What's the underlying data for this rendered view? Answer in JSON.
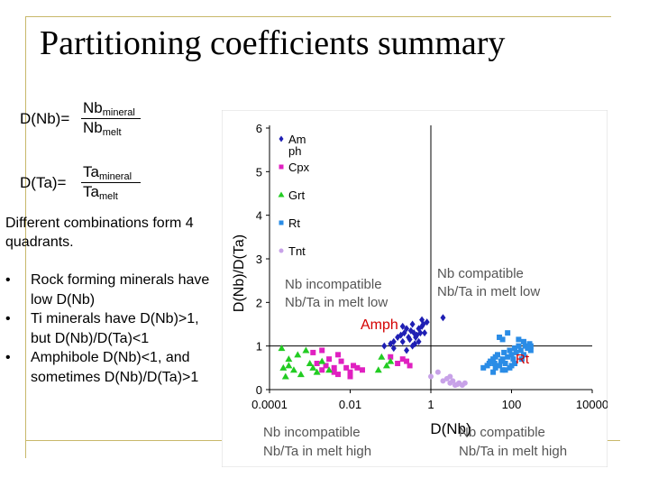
{
  "slide": {
    "title": "Partitioning coefficients summary",
    "d_nb": {
      "lhs": "D(Nb)=",
      "num_main": "Nb",
      "num_sub": "mineral",
      "den_main": "Nb",
      "den_sub": "melt"
    },
    "d_ta": {
      "lhs": "D(Ta)=",
      "num_main": "Ta",
      "num_sub": "mineral",
      "den_main": "Ta",
      "den_sub": "melt"
    },
    "intro": "Different combinations form 4 quadrants.",
    "bullets": [
      "Rock forming minerals have low D(Nb)",
      "Ti minerals have D(Nb)>1, but D(Nb)/D(Ta)<1",
      "Amphibole D(Nb)<1, and sometimes D(Nb)/D(Ta)>1"
    ]
  },
  "chart_data": {
    "type": "scatter",
    "xscale": "log",
    "xlabel": "D(Nb)",
    "ylabel": "D(Nb)/D(Ta)",
    "xlim": [
      0.0001,
      10000
    ],
    "ylim": [
      0,
      6
    ],
    "x_ticks": [
      "0.0001",
      "0.01",
      "1",
      "100",
      "10000"
    ],
    "y_ticks": [
      "0",
      "1",
      "2",
      "3",
      "4",
      "5",
      "6"
    ],
    "reference_lines": {
      "x": 1,
      "y": 1
    },
    "legend": {
      "placement": "top-left",
      "entries": [
        {
          "name": "Am ph",
          "color": "#1f1fb4",
          "marker": "diamond"
        },
        {
          "name": "Cpx",
          "color": "#e020c0",
          "marker": "square"
        },
        {
          "name": "Grt",
          "color": "#22cc22",
          "marker": "triangle"
        },
        {
          "name": "Rt",
          "color": "#2a8ce6",
          "marker": "square"
        },
        {
          "name": "Tnt",
          "color": "#c8a2e8",
          "marker": "circle"
        }
      ]
    },
    "annotations": [
      {
        "id": "q-upper-left",
        "lines": [
          "Nb incompatible",
          "Nb/Ta in melt low"
        ],
        "color": "#555555"
      },
      {
        "id": "q-upper-right",
        "lines": [
          "Nb compatible",
          "Nb/Ta in melt low"
        ],
        "color": "#555555"
      },
      {
        "id": "q-lower-left",
        "lines": [
          "Nb incompatible",
          "Nb/Ta in melt high"
        ],
        "color": "#555555"
      },
      {
        "id": "q-lower-right",
        "lines": [
          "Nb compatible",
          "Nb/Ta in melt high"
        ],
        "color": "#555555"
      },
      {
        "id": "label-amph",
        "lines": [
          "Amph"
        ],
        "color": "#d40000"
      },
      {
        "id": "label-rt",
        "lines": [
          "Rt"
        ],
        "color": "#d40000"
      }
    ],
    "series": [
      {
        "name": "Am ph",
        "color": "#1f1fb4",
        "marker": "diamond",
        "x": [
          0.07,
          0.1,
          0.12,
          0.15,
          0.18,
          0.2,
          0.22,
          0.25,
          0.28,
          0.3,
          0.32,
          0.35,
          0.38,
          0.4,
          0.42,
          0.45,
          0.5,
          0.55,
          0.6,
          0.65,
          0.7,
          0.8,
          0.12,
          0.25,
          0.35,
          0.5,
          0.6,
          0.2,
          2.0
        ],
        "y": [
          1.0,
          1.05,
          1.1,
          1.2,
          1.25,
          1.1,
          1.3,
          1.4,
          1.2,
          1.15,
          1.35,
          1.5,
          1.3,
          1.05,
          1.2,
          1.25,
          1.4,
          1.3,
          1.45,
          1.5,
          1.3,
          1.55,
          0.95,
          0.9,
          1.0,
          1.1,
          1.6,
          1.45,
          1.65
        ]
      },
      {
        "name": "Cpx",
        "color": "#e020c0",
        "marker": "square",
        "x": [
          0.0012,
          0.0015,
          0.002,
          0.0025,
          0.003,
          0.004,
          0.005,
          0.006,
          0.008,
          0.01,
          0.012,
          0.015,
          0.02,
          0.1,
          0.15,
          0.2,
          0.25,
          0.3,
          0.002,
          0.005,
          0.01,
          0.004
        ],
        "y": [
          0.85,
          0.6,
          0.45,
          0.55,
          0.7,
          0.5,
          0.35,
          0.65,
          0.5,
          0.4,
          0.55,
          0.5,
          0.45,
          0.75,
          0.6,
          0.7,
          0.65,
          0.55,
          0.9,
          0.8,
          0.3,
          0.4
        ]
      },
      {
        "name": "Grt",
        "color": "#22cc22",
        "marker": "triangle",
        "x": [
          0.0002,
          0.00022,
          0.00025,
          0.0003,
          0.0003,
          0.0004,
          0.0005,
          0.0006,
          0.0008,
          0.001,
          0.0012,
          0.0015,
          0.002,
          0.003,
          0.05,
          0.06,
          0.08,
          0.1
        ],
        "y": [
          0.95,
          0.5,
          0.3,
          0.7,
          0.55,
          0.45,
          0.8,
          0.35,
          0.9,
          0.6,
          0.5,
          0.4,
          0.65,
          0.45,
          0.45,
          0.75,
          0.55,
          0.65
        ]
      },
      {
        "name": "Rt",
        "color": "#2a8ce6",
        "marker": "square",
        "x": [
          20,
          25,
          28,
          30,
          35,
          38,
          40,
          45,
          50,
          55,
          60,
          65,
          70,
          80,
          90,
          100,
          110,
          120,
          130,
          150,
          170,
          200,
          220,
          250,
          280,
          300,
          50,
          60,
          80,
          100,
          150,
          200,
          300,
          40,
          35,
          70,
          90,
          120,
          180,
          60
        ],
        "y": [
          0.5,
          0.55,
          0.6,
          0.65,
          0.7,
          0.6,
          0.75,
          0.8,
          0.55,
          0.65,
          0.7,
          0.85,
          0.6,
          0.75,
          0.9,
          0.8,
          0.7,
          0.95,
          0.85,
          1.0,
          0.9,
          1.1,
          1.0,
          0.95,
          1.05,
          0.9,
          1.2,
          0.45,
          1.3,
          0.55,
          1.15,
          0.8,
          1.0,
          0.5,
          0.4,
          0.45,
          0.5,
          0.6,
          0.7,
          1.15
        ]
      },
      {
        "name": "Tnt",
        "color": "#c8a2e8",
        "marker": "circle",
        "x": [
          1.0,
          1.5,
          2.0,
          2.5,
          3.0,
          3.5,
          4.0,
          5.0,
          6.0,
          7.0,
          3.0,
          4.5
        ],
        "y": [
          0.3,
          0.4,
          0.2,
          0.25,
          0.15,
          0.2,
          0.1,
          0.15,
          0.1,
          0.15,
          0.3,
          0.12
        ]
      }
    ]
  }
}
